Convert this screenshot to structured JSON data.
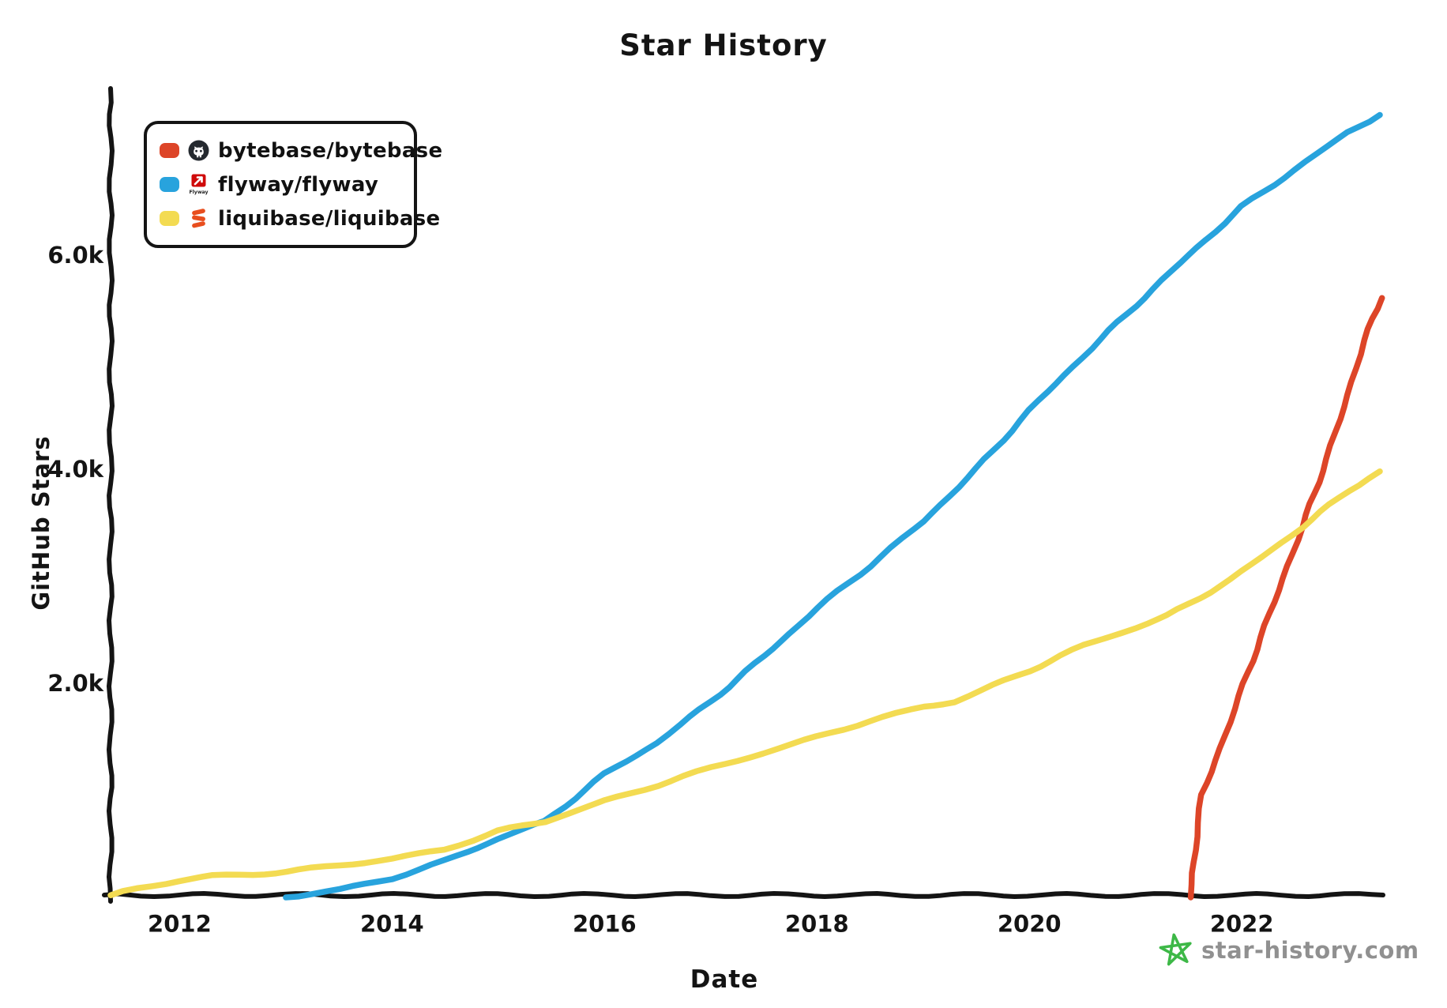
{
  "legend": {
    "items": [
      {
        "label": "bytebase/bytebase",
        "color": "#dd4528",
        "icon": "bytebase-logo-icon"
      },
      {
        "label": "flyway/flyway",
        "color": "#28a3dd",
        "icon": "flyway-logo-icon"
      },
      {
        "label": "liquibase/liquibase",
        "color": "#f3db52",
        "icon": "liquibase-logo-icon"
      }
    ]
  },
  "watermark": {
    "text": "star-history.com",
    "text_color": "#909090",
    "star_color": "#3db847"
  },
  "chart_data": {
    "type": "line",
    "title": "Star History",
    "xlabel": "Date",
    "ylabel": "GitHub Stars",
    "grid": false,
    "legend_position": "top-left",
    "axis_color": "#141414",
    "xlim": [
      2011.35,
      2023.3
    ],
    "ylim": [
      0,
      7535
    ],
    "x_ticks": [
      {
        "value": 2012,
        "label": "2012"
      },
      {
        "value": 2014,
        "label": "2014"
      },
      {
        "value": 2016,
        "label": "2016"
      },
      {
        "value": 2018,
        "label": "2018"
      },
      {
        "value": 2020,
        "label": "2020"
      },
      {
        "value": 2022,
        "label": "2022"
      }
    ],
    "y_ticks": [
      {
        "value": 2000,
        "label": "2.0k"
      },
      {
        "value": 4000,
        "label": "4.0k"
      },
      {
        "value": 6000,
        "label": "6.0k"
      }
    ],
    "series": [
      {
        "name": "bytebase/bytebase",
        "color": "#dd4528",
        "points": [
          [
            2021.52,
            0
          ],
          [
            2021.56,
            450
          ],
          [
            2021.62,
            950
          ],
          [
            2021.8,
            1400
          ],
          [
            2022.06,
            2110
          ],
          [
            2022.3,
            2750
          ],
          [
            2022.57,
            3460
          ],
          [
            2022.8,
            4100
          ],
          [
            2023.0,
            4700
          ],
          [
            2023.15,
            5200
          ],
          [
            2023.32,
            5600
          ]
        ]
      },
      {
        "name": "flyway/flyway",
        "color": "#28a3dd",
        "points": [
          [
            2013.0,
            0
          ],
          [
            2013.5,
            70
          ],
          [
            2014.0,
            180
          ],
          [
            2014.5,
            340
          ],
          [
            2015.0,
            550
          ],
          [
            2015.44,
            710
          ],
          [
            2016.0,
            1150
          ],
          [
            2016.5,
            1450
          ],
          [
            2017.0,
            1830
          ],
          [
            2017.5,
            2250
          ],
          [
            2018.0,
            2700
          ],
          [
            2018.5,
            3100
          ],
          [
            2019.0,
            3510
          ],
          [
            2019.5,
            4000
          ],
          [
            2020.0,
            4550
          ],
          [
            2020.5,
            5050
          ],
          [
            2021.0,
            5530
          ],
          [
            2021.5,
            6000
          ],
          [
            2022.0,
            6450
          ],
          [
            2022.5,
            6800
          ],
          [
            2023.0,
            7150
          ],
          [
            2023.3,
            7310
          ]
        ]
      },
      {
        "name": "liquibase/liquibase",
        "color": "#f3db52",
        "points": [
          [
            2011.35,
            20
          ],
          [
            2011.6,
            80
          ],
          [
            2012.0,
            160
          ],
          [
            2012.3,
            200
          ],
          [
            2012.7,
            215
          ],
          [
            2013.0,
            240
          ],
          [
            2013.5,
            300
          ],
          [
            2014.0,
            360
          ],
          [
            2014.5,
            450
          ],
          [
            2015.0,
            620
          ],
          [
            2015.44,
            710
          ],
          [
            2016.0,
            900
          ],
          [
            2016.5,
            1050
          ],
          [
            2017.0,
            1210
          ],
          [
            2017.5,
            1350
          ],
          [
            2018.0,
            1500
          ],
          [
            2018.5,
            1650
          ],
          [
            2019.0,
            1780
          ],
          [
            2019.3,
            1830
          ],
          [
            2020.0,
            2120
          ],
          [
            2020.5,
            2350
          ],
          [
            2021.0,
            2520
          ],
          [
            2021.3,
            2630
          ],
          [
            2021.9,
            2970
          ],
          [
            2022.57,
            3460
          ],
          [
            2023.0,
            3800
          ],
          [
            2023.3,
            3980
          ]
        ]
      }
    ]
  }
}
